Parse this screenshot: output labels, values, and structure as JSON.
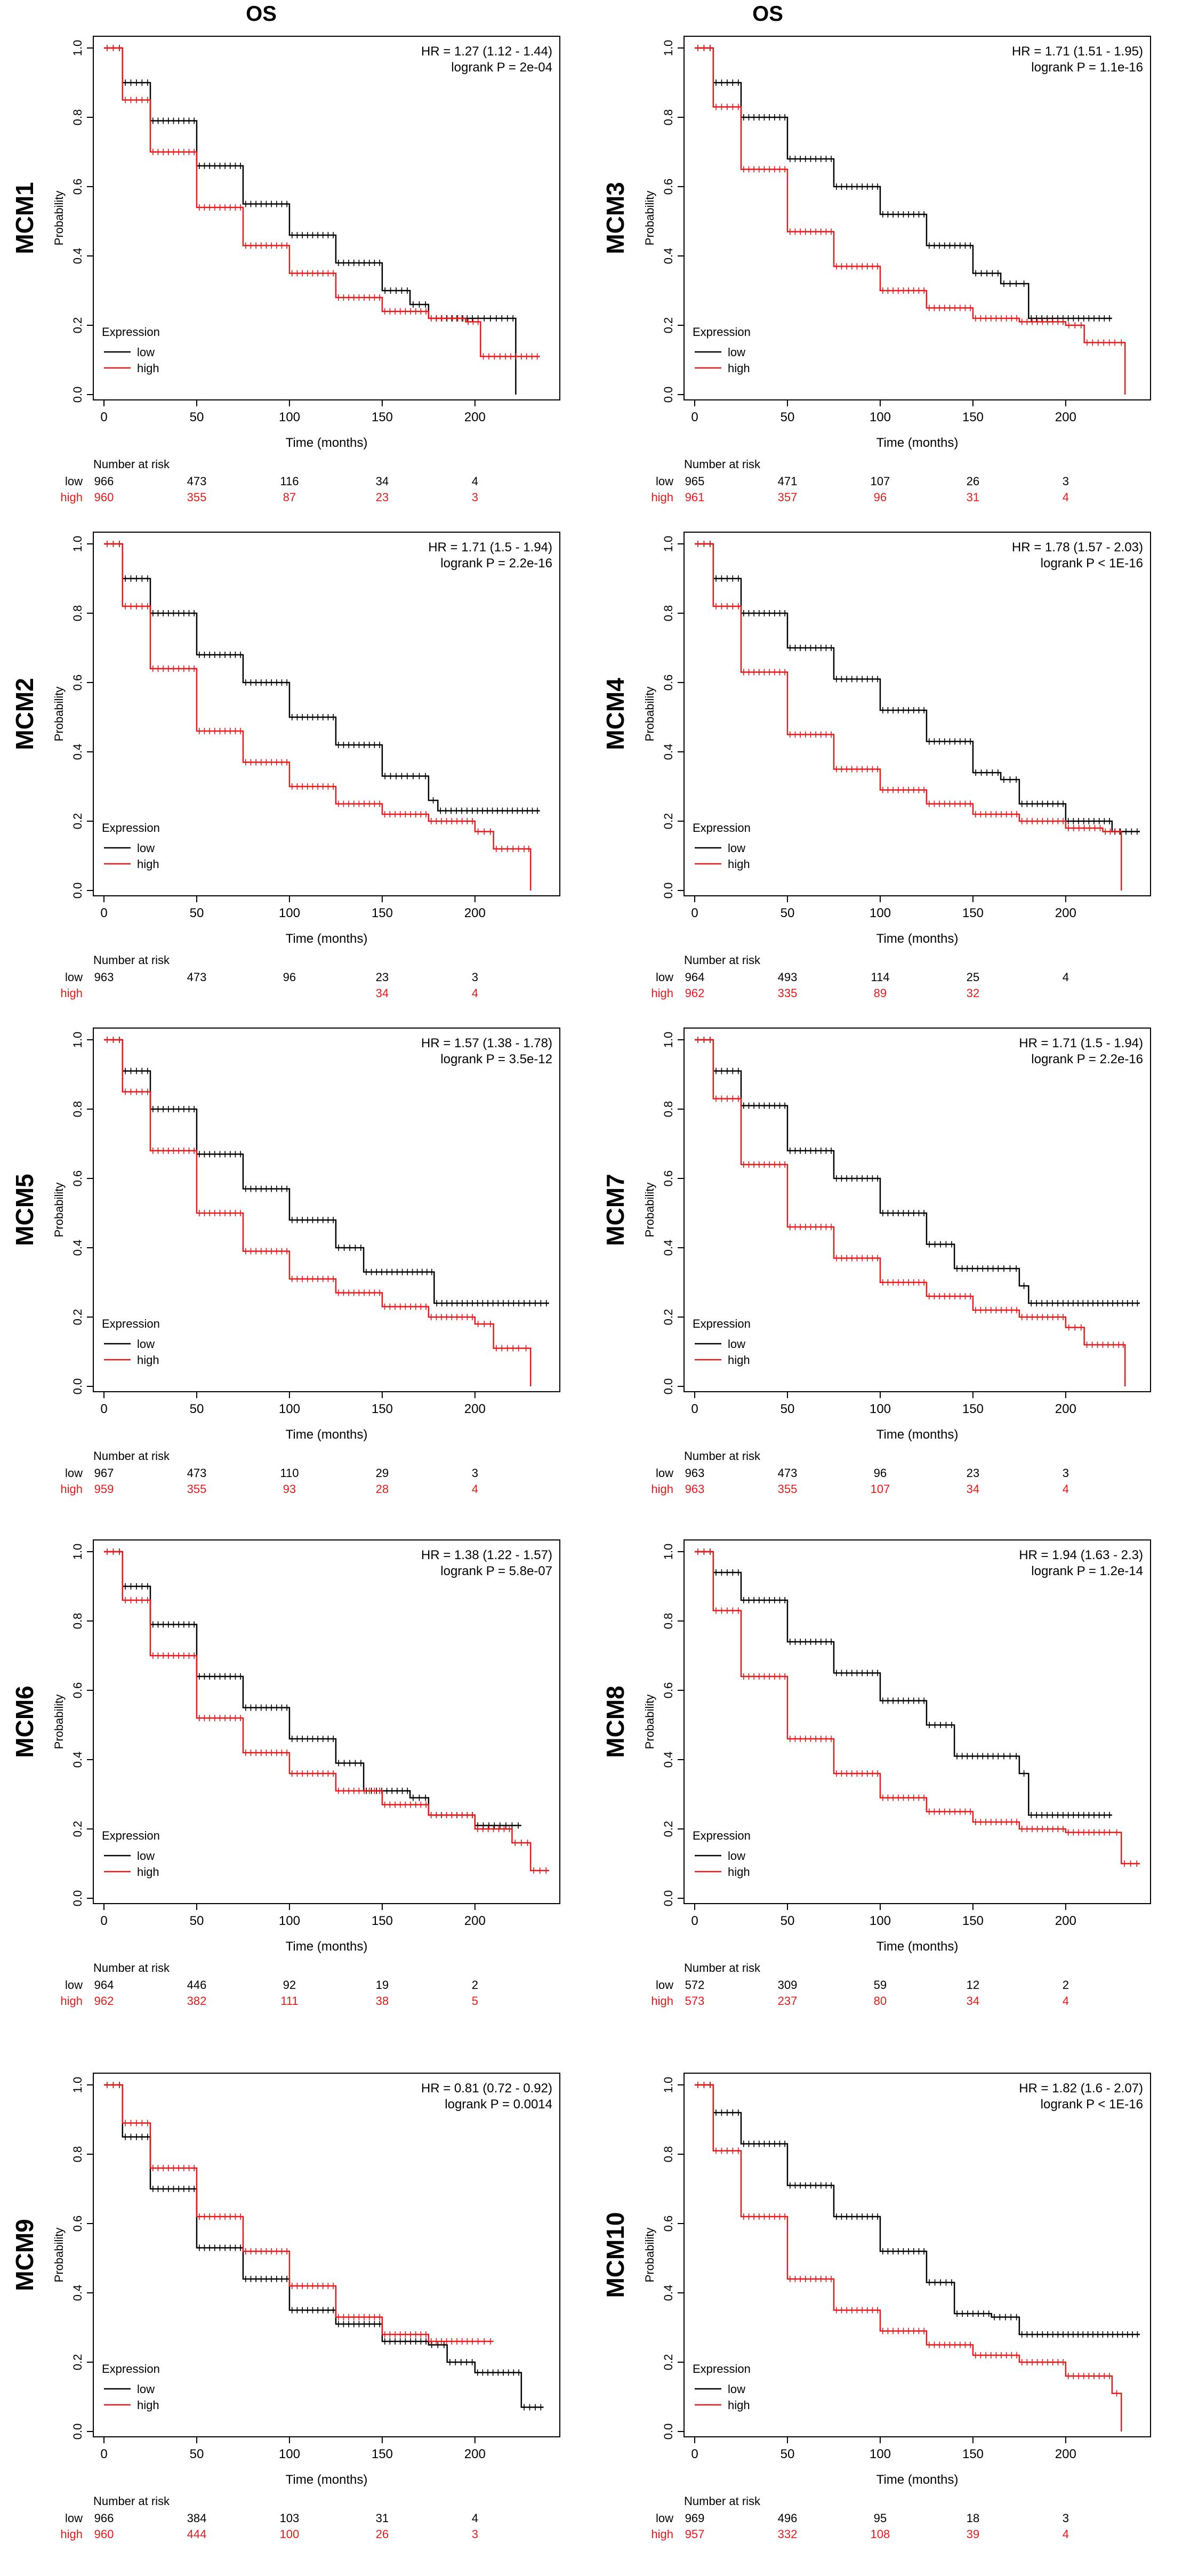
{
  "column_headers": [
    "OS",
    "OS"
  ],
  "common": {
    "ylabel": "Probability",
    "xlabel": "Time (months)",
    "legend_title": "Expression",
    "legend_low": "low",
    "legend_high": "high",
    "risk_title": "Number at risk",
    "x_ticks": [
      "0",
      "50",
      "100",
      "150",
      "200"
    ],
    "y_ticks": [
      "0.0",
      "0.2",
      "0.4",
      "0.6",
      "0.8",
      "1.0"
    ],
    "row_low_label": "low",
    "row_high_label": "high",
    "colors": {
      "low": "#000000",
      "high": "#e8191a"
    }
  },
  "chart_data": [
    {
      "type": "line",
      "gene": "MCM1",
      "hr_text": "HR = 1.27 (1.12 - 1.44)",
      "p_text": "logrank P = 2e-04",
      "xlim": [
        0,
        240
      ],
      "ylim": [
        0,
        1
      ],
      "series": [
        {
          "name": "low",
          "x": [
            0,
            10,
            25,
            50,
            75,
            100,
            125,
            150,
            165,
            175,
            200,
            210,
            222
          ],
          "y": [
            1,
            0.9,
            0.79,
            0.66,
            0.55,
            0.46,
            0.38,
            0.3,
            0.26,
            0.22,
            0.22,
            0.22,
            0.0
          ]
        },
        {
          "name": "high",
          "x": [
            0,
            10,
            25,
            50,
            75,
            100,
            125,
            150,
            175,
            195,
            203,
            215,
            235
          ],
          "y": [
            1,
            0.85,
            0.7,
            0.54,
            0.43,
            0.35,
            0.28,
            0.24,
            0.22,
            0.21,
            0.11,
            0.11,
            0.11
          ]
        }
      ],
      "risk": {
        "low": [
          "966",
          "473",
          "116",
          "34",
          "4"
        ],
        "high": [
          "960",
          "355",
          "87",
          "23",
          "3"
        ]
      }
    },
    {
      "type": "line",
      "gene": "MCM3",
      "hr_text": "HR = 1.71 (1.51 - 1.95)",
      "p_text": "logrank P = 1.1e-16",
      "xlim": [
        0,
        240
      ],
      "ylim": [
        0,
        1
      ],
      "series": [
        {
          "name": "low",
          "x": [
            0,
            10,
            25,
            50,
            75,
            100,
            125,
            150,
            165,
            175,
            180,
            200,
            225
          ],
          "y": [
            1,
            0.9,
            0.8,
            0.68,
            0.6,
            0.52,
            0.43,
            0.35,
            0.32,
            0.32,
            0.22,
            0.22,
            0.22
          ]
        },
        {
          "name": "high",
          "x": [
            0,
            10,
            25,
            50,
            75,
            100,
            125,
            150,
            175,
            200,
            210,
            228,
            232
          ],
          "y": [
            1,
            0.83,
            0.65,
            0.47,
            0.37,
            0.3,
            0.25,
            0.22,
            0.21,
            0.2,
            0.15,
            0.15,
            0.0
          ]
        }
      ],
      "risk": {
        "low": [
          "965",
          "471",
          "107",
          "26",
          "3"
        ],
        "high": [
          "961",
          "357",
          "96",
          "31",
          "4"
        ]
      }
    },
    {
      "type": "line",
      "gene": "MCM2",
      "hr_text": "HR = 1.71 (1.5 - 1.94)",
      "p_text": "logrank P = 2.2e-16",
      "xlim": [
        0,
        240
      ],
      "ylim": [
        0,
        1
      ],
      "series": [
        {
          "name": "low",
          "x": [
            0,
            10,
            25,
            50,
            75,
            100,
            125,
            150,
            165,
            175,
            180,
            200,
            235
          ],
          "y": [
            1,
            0.9,
            0.8,
            0.68,
            0.6,
            0.5,
            0.42,
            0.33,
            0.33,
            0.26,
            0.23,
            0.23,
            0.23
          ]
        },
        {
          "name": "high",
          "x": [
            0,
            10,
            25,
            50,
            75,
            100,
            125,
            150,
            175,
            200,
            210,
            228,
            230
          ],
          "y": [
            1,
            0.82,
            0.64,
            0.46,
            0.37,
            0.3,
            0.25,
            0.22,
            0.2,
            0.17,
            0.12,
            0.12,
            0.0
          ]
        }
      ],
      "risk": {
        "low": [
          "963",
          "473",
          "96",
          "23",
          "3"
        ],
        "high": [
          "",
          "",
          "",
          "34",
          "4"
        ]
      }
    },
    {
      "type": "line",
      "gene": "MCM4",
      "hr_text": "HR = 1.78 (1.57 - 2.03)",
      "p_text": "logrank P < 1E-16",
      "xlim": [
        0,
        240
      ],
      "ylim": [
        0,
        1
      ],
      "series": [
        {
          "name": "low",
          "x": [
            0,
            10,
            25,
            50,
            75,
            100,
            125,
            150,
            165,
            175,
            200,
            225,
            240
          ],
          "y": [
            1,
            0.9,
            0.8,
            0.7,
            0.61,
            0.52,
            0.43,
            0.34,
            0.32,
            0.25,
            0.2,
            0.17,
            0.17
          ]
        },
        {
          "name": "high",
          "x": [
            0,
            10,
            25,
            50,
            75,
            100,
            125,
            150,
            175,
            200,
            220,
            228,
            230
          ],
          "y": [
            1,
            0.82,
            0.63,
            0.45,
            0.35,
            0.29,
            0.25,
            0.22,
            0.2,
            0.18,
            0.17,
            0.17,
            0.0
          ]
        }
      ],
      "risk": {
        "low": [
          "964",
          "493",
          "114",
          "25",
          "4"
        ],
        "high": [
          "962",
          "335",
          "89",
          "32",
          ""
        ]
      }
    },
    {
      "type": "line",
      "gene": "MCM5",
      "hr_text": "HR = 1.57 (1.38 - 1.78)",
      "p_text": "logrank P = 3.5e-12",
      "xlim": [
        0,
        240
      ],
      "ylim": [
        0,
        1
      ],
      "series": [
        {
          "name": "low",
          "x": [
            0,
            10,
            25,
            50,
            75,
            100,
            125,
            140,
            165,
            178,
            200,
            225,
            240
          ],
          "y": [
            1,
            0.91,
            0.8,
            0.67,
            0.57,
            0.48,
            0.4,
            0.33,
            0.33,
            0.24,
            0.24,
            0.24,
            0.24
          ]
        },
        {
          "name": "high",
          "x": [
            0,
            10,
            25,
            50,
            75,
            100,
            125,
            150,
            175,
            200,
            210,
            225,
            230
          ],
          "y": [
            1,
            0.85,
            0.68,
            0.5,
            0.39,
            0.31,
            0.27,
            0.23,
            0.2,
            0.18,
            0.11,
            0.11,
            0.0
          ]
        }
      ],
      "risk": {
        "low": [
          "967",
          "473",
          "110",
          "29",
          "3"
        ],
        "high": [
          "959",
          "355",
          "93",
          "28",
          "4"
        ]
      }
    },
    {
      "type": "line",
      "gene": "MCM7",
      "hr_text": "HR = 1.71 (1.5 - 1.94)",
      "p_text": "logrank P = 2.2e-16",
      "xlim": [
        0,
        240
      ],
      "ylim": [
        0,
        1
      ],
      "series": [
        {
          "name": "low",
          "x": [
            0,
            10,
            25,
            50,
            75,
            100,
            125,
            140,
            165,
            175,
            180,
            200,
            240
          ],
          "y": [
            1,
            0.91,
            0.81,
            0.68,
            0.6,
            0.5,
            0.41,
            0.34,
            0.34,
            0.29,
            0.24,
            0.24,
            0.24
          ]
        },
        {
          "name": "high",
          "x": [
            0,
            10,
            25,
            50,
            75,
            100,
            125,
            150,
            175,
            200,
            210,
            230,
            232
          ],
          "y": [
            1,
            0.83,
            0.64,
            0.46,
            0.37,
            0.3,
            0.26,
            0.22,
            0.2,
            0.17,
            0.12,
            0.12,
            0.0
          ]
        }
      ],
      "risk": {
        "low": [
          "963",
          "473",
          "96",
          "23",
          "3"
        ],
        "high": [
          "963",
          "355",
          "107",
          "34",
          "4"
        ]
      }
    },
    {
      "type": "line",
      "gene": "MCM6",
      "hr_text": "HR = 1.38 (1.22 - 1.57)",
      "p_text": "logrank P = 5.8e-07",
      "xlim": [
        0,
        240
      ],
      "ylim": [
        0,
        1
      ],
      "series": [
        {
          "name": "low",
          "x": [
            0,
            10,
            25,
            50,
            75,
            100,
            125,
            140,
            165,
            175,
            200,
            215,
            225
          ],
          "y": [
            1,
            0.9,
            0.79,
            0.64,
            0.55,
            0.46,
            0.39,
            0.31,
            0.29,
            0.24,
            0.21,
            0.21,
            0.21
          ]
        },
        {
          "name": "high",
          "x": [
            0,
            10,
            25,
            50,
            75,
            100,
            125,
            150,
            175,
            200,
            220,
            230,
            240
          ],
          "y": [
            1,
            0.86,
            0.7,
            0.52,
            0.42,
            0.36,
            0.31,
            0.27,
            0.24,
            0.2,
            0.16,
            0.08,
            0.08
          ]
        }
      ],
      "risk": {
        "low": [
          "964",
          "446",
          "92",
          "19",
          "2"
        ],
        "high": [
          "962",
          "382",
          "111",
          "38",
          "5"
        ]
      }
    },
    {
      "type": "line",
      "gene": "MCM8",
      "hr_text": "HR = 1.94 (1.63 - 2.3)",
      "p_text": "logrank P = 1.2e-14",
      "xlim": [
        0,
        240
      ],
      "ylim": [
        0,
        1
      ],
      "series": [
        {
          "name": "low",
          "x": [
            0,
            10,
            25,
            50,
            75,
            100,
            125,
            140,
            165,
            175,
            180,
            200,
            225
          ],
          "y": [
            1,
            0.94,
            0.86,
            0.74,
            0.65,
            0.57,
            0.5,
            0.41,
            0.41,
            0.36,
            0.24,
            0.24,
            0.24
          ]
        },
        {
          "name": "high",
          "x": [
            0,
            10,
            25,
            50,
            75,
            100,
            125,
            150,
            175,
            200,
            225,
            230,
            240
          ],
          "y": [
            1,
            0.83,
            0.64,
            0.46,
            0.36,
            0.29,
            0.25,
            0.22,
            0.2,
            0.19,
            0.19,
            0.1,
            0.1
          ]
        }
      ],
      "risk": {
        "low": [
          "572",
          "309",
          "59",
          "12",
          "2"
        ],
        "high": [
          "573",
          "237",
          "80",
          "34",
          "4"
        ]
      }
    },
    {
      "type": "line",
      "gene": "MCM9",
      "hr_text": "HR = 0.81 (0.72 - 0.92)",
      "p_text": "logrank P = 0.0014",
      "xlim": [
        0,
        240
      ],
      "ylim": [
        0,
        1
      ],
      "series": [
        {
          "name": "low",
          "x": [
            0,
            10,
            25,
            50,
            75,
            100,
            125,
            150,
            175,
            185,
            200,
            225,
            237
          ],
          "y": [
            1,
            0.85,
            0.7,
            0.53,
            0.44,
            0.35,
            0.31,
            0.26,
            0.25,
            0.2,
            0.17,
            0.07,
            0.07
          ]
        },
        {
          "name": "high",
          "x": [
            0,
            10,
            25,
            50,
            75,
            100,
            125,
            150,
            175,
            200,
            210
          ],
          "y": [
            1,
            0.89,
            0.76,
            0.62,
            0.52,
            0.42,
            0.33,
            0.28,
            0.26,
            0.26,
            0.26
          ]
        }
      ],
      "risk": {
        "low": [
          "966",
          "384",
          "103",
          "31",
          "4"
        ],
        "high": [
          "960",
          "444",
          "100",
          "26",
          "3"
        ]
      }
    },
    {
      "type": "line",
      "gene": "MCM10",
      "hr_text": "HR = 1.82 (1.6 - 2.07)",
      "p_text": "logrank P < 1E-16",
      "xlim": [
        0,
        240
      ],
      "ylim": [
        0,
        1
      ],
      "series": [
        {
          "name": "low",
          "x": [
            0,
            10,
            25,
            50,
            75,
            100,
            125,
            140,
            160,
            175,
            200,
            240
          ],
          "y": [
            1,
            0.92,
            0.83,
            0.71,
            0.62,
            0.52,
            0.43,
            0.34,
            0.33,
            0.28,
            0.28,
            0.28
          ]
        },
        {
          "name": "high",
          "x": [
            0,
            10,
            25,
            50,
            75,
            100,
            125,
            150,
            175,
            200,
            225,
            230
          ],
          "y": [
            1,
            0.81,
            0.62,
            0.44,
            0.35,
            0.29,
            0.25,
            0.22,
            0.2,
            0.16,
            0.11,
            0.0
          ]
        }
      ],
      "risk": {
        "low": [
          "969",
          "496",
          "95",
          "18",
          "3"
        ],
        "high": [
          "957",
          "332",
          "108",
          "39",
          "4"
        ]
      }
    }
  ]
}
